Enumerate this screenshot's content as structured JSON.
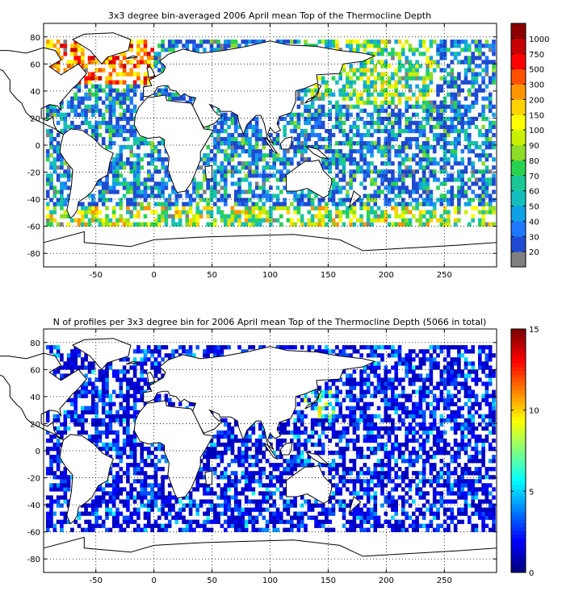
{
  "chart_data": [
    {
      "type": "heatmap",
      "title": "3x3 degree bin-averaged 2006 April mean Top of the Thermocline Depth",
      "xlim": [
        -95,
        295
      ],
      "ylim": [
        -90,
        90
      ],
      "xticks": [
        -50,
        0,
        50,
        100,
        150,
        200,
        250
      ],
      "yticks": [
        80,
        60,
        40,
        20,
        0,
        -20,
        -40,
        -60,
        -80
      ],
      "grid": true,
      "colorbar": {
        "position": "right",
        "scale": "categorical",
        "labels": [
          "20",
          "30",
          "40",
          "50",
          "60",
          "70",
          "80",
          "90",
          "100",
          "150",
          "200",
          "300",
          "500",
          "750",
          "1000"
        ],
        "colors": [
          "#808080",
          "#1e4bd2",
          "#1e78ff",
          "#0fa0e6",
          "#14bebe",
          "#19c896",
          "#28d250",
          "#8cdc28",
          "#c8f000",
          "#ffff00",
          "#ffd200",
          "#ff9600",
          "#ff5000",
          "#ff0000",
          "#c80000",
          "#8c0000"
        ]
      }
    },
    {
      "type": "heatmap",
      "title": "N of profiles per 3x3 degree bin for 2006 April mean Top of the Thermocline Depth  (5066 in total)",
      "xlim": [
        -95,
        295
      ],
      "ylim": [
        -90,
        90
      ],
      "xticks": [
        -50,
        0,
        50,
        100,
        150,
        200,
        250
      ],
      "yticks": [
        80,
        60,
        40,
        20,
        0,
        -20,
        -40,
        -60,
        -80
      ],
      "grid": true,
      "colorbar": {
        "position": "right",
        "scale": "continuous",
        "range": [
          0,
          15
        ],
        "ticks": [
          0,
          5,
          10,
          15
        ],
        "colormap": "jet"
      }
    }
  ]
}
